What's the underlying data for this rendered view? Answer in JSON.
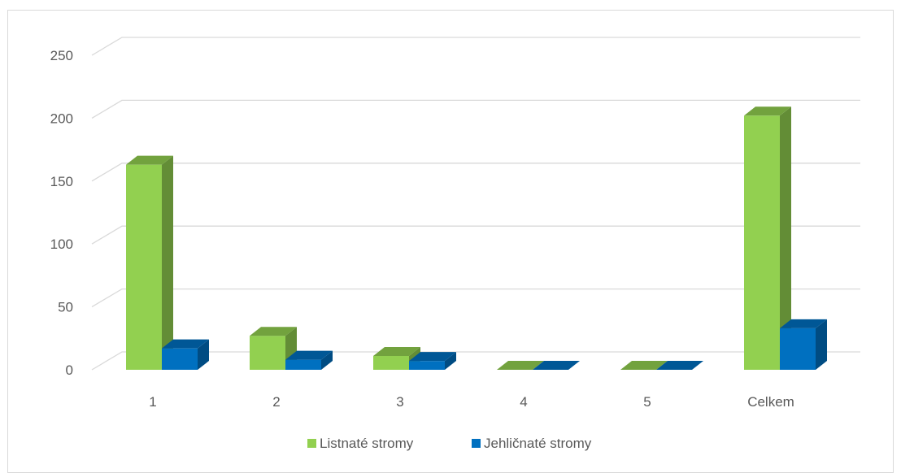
{
  "chart_data": {
    "type": "bar",
    "style": "3d-clustered-column",
    "categories": [
      "1",
      "2",
      "3",
      "4",
      "5",
      "Celkem"
    ],
    "series": [
      {
        "name": "Listnaté stromy",
        "color": "#92d050",
        "values": [
          163,
          27,
          11,
          0,
          0,
          202
        ]
      },
      {
        "name": "Jehličnaté stromy",
        "color": "#0070c0",
        "values": [
          17,
          8,
          7,
          0,
          0,
          33
        ]
      }
    ],
    "title": "",
    "xlabel": "",
    "ylabel": "",
    "ylim": [
      0,
      250
    ],
    "yticks": [
      0,
      50,
      100,
      150,
      200,
      250
    ],
    "grid": true,
    "legend": "bottom"
  }
}
